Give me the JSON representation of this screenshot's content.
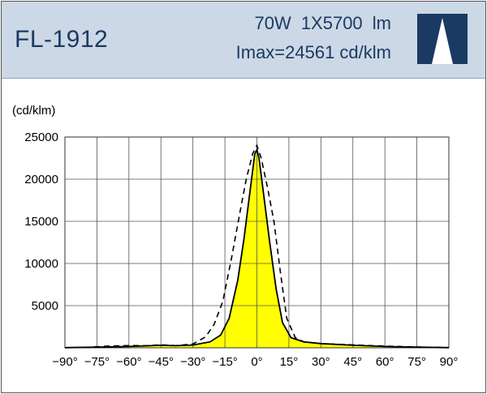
{
  "header": {
    "model": "FL-1912",
    "power": "70W 1X5700 lm",
    "imax": "Imax=24561 cd/klm",
    "logo_icon": "white-triangle-logo-icon",
    "bg_color": "#ccd8e5",
    "text_color": "#1b3a63",
    "logo_color": "#1b3a63"
  },
  "chart_data": {
    "type": "line",
    "title": "",
    "xlabel": "",
    "ylabel": "(cd/klm)",
    "xlim": [
      -90,
      90
    ],
    "ylim": [
      0,
      25000
    ],
    "x_ticks": [
      -90,
      -75,
      -60,
      -45,
      -30,
      -15,
      0,
      15,
      30,
      45,
      60,
      75,
      90
    ],
    "x_tick_labels": [
      "−90°",
      "−75°",
      "−60°",
      "−45°",
      "−30°",
      "−15°",
      "0°",
      "15°",
      "30°",
      "45°",
      "60°",
      "75°",
      "90°"
    ],
    "y_ticks": [
      5000,
      10000,
      15000,
      20000,
      25000
    ],
    "y_tick_labels": [
      "5000",
      "10000",
      "15000",
      "20000",
      "25000"
    ],
    "grid": true,
    "series": [
      {
        "style": "solid-filled",
        "color": "#000000",
        "fill": "#ffff00",
        "points": [
          [
            -90,
            20
          ],
          [
            -75,
            80
          ],
          [
            -60,
            150
          ],
          [
            -52,
            230
          ],
          [
            -45,
            300
          ],
          [
            -38,
            250
          ],
          [
            -30,
            330
          ],
          [
            -22,
            700
          ],
          [
            -17,
            1500
          ],
          [
            -13,
            3500
          ],
          [
            -9,
            8000
          ],
          [
            -6,
            13000
          ],
          [
            -3,
            19000
          ],
          [
            -1,
            23000
          ],
          [
            0,
            23500
          ],
          [
            1,
            22500
          ],
          [
            3,
            18500
          ],
          [
            6,
            12500
          ],
          [
            9,
            7000
          ],
          [
            12,
            3000
          ],
          [
            16,
            1200
          ],
          [
            22,
            700
          ],
          [
            30,
            500
          ],
          [
            45,
            300
          ],
          [
            60,
            150
          ],
          [
            75,
            80
          ],
          [
            90,
            20
          ]
        ]
      },
      {
        "style": "dashed",
        "color": "#000000",
        "points": [
          [
            -90,
            20
          ],
          [
            -80,
            40
          ],
          [
            -70,
            200
          ],
          [
            -60,
            260
          ],
          [
            -52,
            250
          ],
          [
            -45,
            350
          ],
          [
            -38,
            260
          ],
          [
            -30,
            450
          ],
          [
            -24,
            1300
          ],
          [
            -20,
            2800
          ],
          [
            -16,
            5500
          ],
          [
            -12,
            10500
          ],
          [
            -8,
            16000
          ],
          [
            -5,
            20000
          ],
          [
            -2,
            23000
          ],
          [
            0,
            24000
          ],
          [
            2,
            22500
          ],
          [
            5,
            19000
          ],
          [
            8,
            15000
          ],
          [
            11,
            9000
          ],
          [
            14,
            3500
          ],
          [
            18,
            1200
          ],
          [
            22,
            700
          ],
          [
            30,
            500
          ],
          [
            45,
            350
          ],
          [
            60,
            200
          ],
          [
            75,
            100
          ],
          [
            90,
            20
          ]
        ]
      }
    ]
  }
}
